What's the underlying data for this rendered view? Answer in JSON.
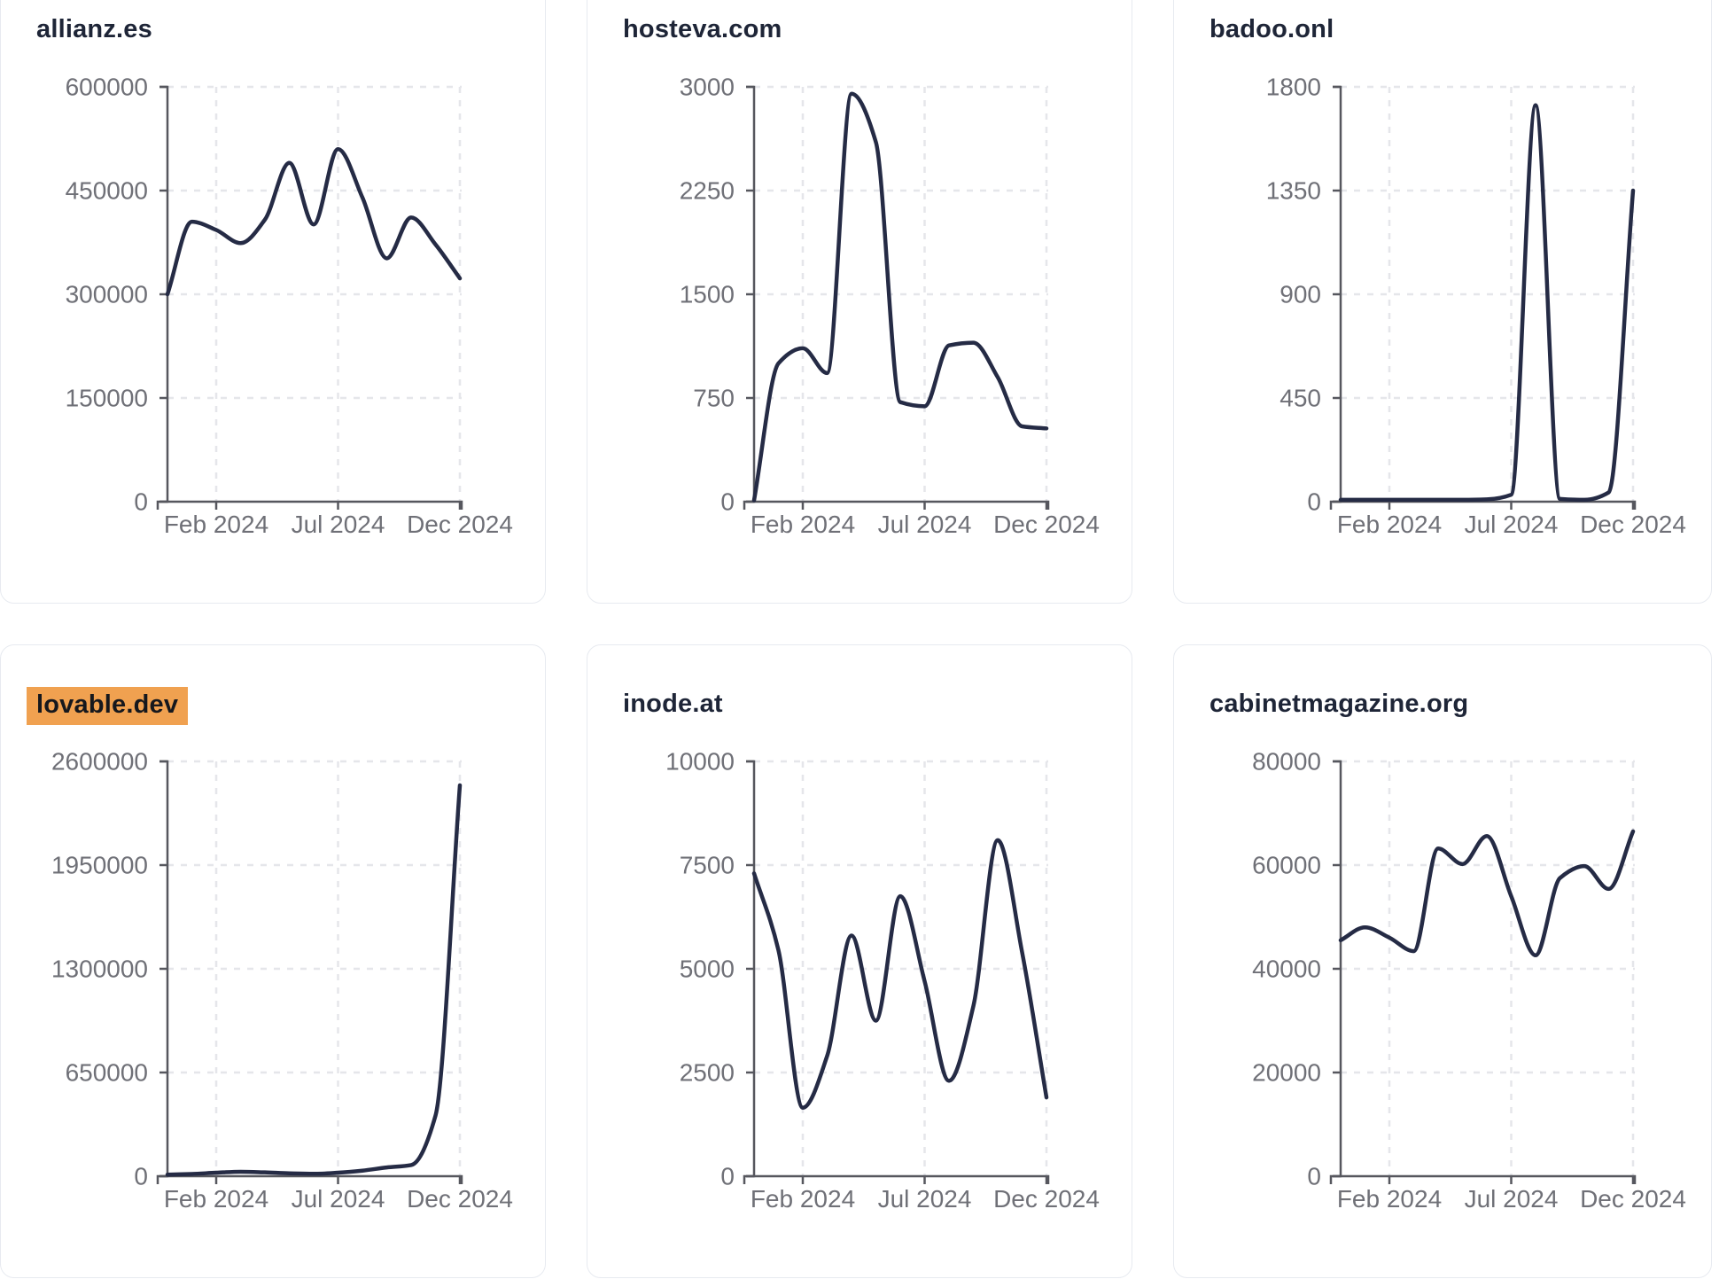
{
  "page": {
    "background": "#ffffff",
    "x_axis_tick_labels": [
      "Feb 2024",
      "Jul 2024",
      "Dec 2024"
    ]
  },
  "style": {
    "card_background": "#ffffff",
    "card_border": "#e7eaf0",
    "title_color": "#1e2537",
    "highlight_color": "#f0a150",
    "highlight_text_color": "#16181d",
    "line_color": "#252b45",
    "axis_color": "#56575e",
    "tick_label_color": "#6f7077",
    "grid_color": "#e5e6ea"
  },
  "chart_data": [
    {
      "type": "line",
      "title": "allianz.es",
      "highlighted": false,
      "x": [
        "2023-12",
        "2024-01",
        "2024-02",
        "2024-03",
        "2024-04",
        "2024-05",
        "2024-06",
        "2024-07",
        "2024-08",
        "2024-09",
        "2024-10",
        "2024-11",
        "2024-12"
      ],
      "x_tick_labels": [
        "Feb 2024",
        "Jul 2024",
        "Dec 2024"
      ],
      "x_tick_month_index": [
        2,
        7,
        12
      ],
      "y_ticks": [
        0,
        150000,
        300000,
        450000,
        600000
      ],
      "ylim": [
        0,
        600000
      ],
      "values": [
        300000,
        405000,
        393000,
        374000,
        408000,
        490000,
        401000,
        510000,
        440000,
        352000,
        411000,
        372000,
        323000
      ]
    },
    {
      "type": "line",
      "title": "hosteva.com",
      "highlighted": false,
      "x": [
        "2023-12",
        "2024-01",
        "2024-02",
        "2024-03",
        "2024-04",
        "2024-05",
        "2024-06",
        "2024-07",
        "2024-08",
        "2024-09",
        "2024-10",
        "2024-11",
        "2024-12"
      ],
      "x_tick_labels": [
        "Feb 2024",
        "Jul 2024",
        "Dec 2024"
      ],
      "x_tick_month_index": [
        2,
        7,
        12
      ],
      "y_ticks": [
        0,
        750,
        1500,
        2250,
        3000
      ],
      "ylim": [
        0,
        3000
      ],
      "values": [
        10,
        1000,
        1110,
        930,
        2950,
        2600,
        720,
        690,
        1130,
        1150,
        900,
        545,
        530
      ]
    },
    {
      "type": "line",
      "title": "badoo.onl",
      "highlighted": false,
      "x": [
        "2023-12",
        "2024-01",
        "2024-02",
        "2024-03",
        "2024-04",
        "2024-05",
        "2024-06",
        "2024-07",
        "2024-08",
        "2024-09",
        "2024-10",
        "2024-11",
        "2024-12"
      ],
      "x_tick_labels": [
        "Feb 2024",
        "Jul 2024",
        "Dec 2024"
      ],
      "x_tick_month_index": [
        2,
        7,
        12
      ],
      "y_ticks": [
        0,
        450,
        900,
        1350,
        1800
      ],
      "ylim": [
        0,
        1800
      ],
      "values": [
        8,
        8,
        8,
        8,
        8,
        8,
        10,
        30,
        1720,
        12,
        8,
        40,
        1350
      ]
    },
    {
      "type": "line",
      "title": "lovable.dev",
      "highlighted": true,
      "x": [
        "2023-12",
        "2024-01",
        "2024-02",
        "2024-03",
        "2024-04",
        "2024-05",
        "2024-06",
        "2024-07",
        "2024-08",
        "2024-09",
        "2024-10",
        "2024-11",
        "2024-12"
      ],
      "x_tick_labels": [
        "Feb 2024",
        "Jul 2024",
        "Dec 2024"
      ],
      "x_tick_month_index": [
        2,
        7,
        12
      ],
      "y_ticks": [
        0,
        650000,
        1300000,
        1950000,
        2600000
      ],
      "ylim": [
        0,
        2600000
      ],
      "values": [
        10000,
        14000,
        22000,
        28000,
        24000,
        18000,
        15000,
        22000,
        35000,
        55000,
        70000,
        380000,
        2450000
      ]
    },
    {
      "type": "line",
      "title": "inode.at",
      "highlighted": false,
      "x": [
        "2023-12",
        "2024-01",
        "2024-02",
        "2024-03",
        "2024-04",
        "2024-05",
        "2024-06",
        "2024-07",
        "2024-08",
        "2024-09",
        "2024-10",
        "2024-11",
        "2024-12"
      ],
      "x_tick_labels": [
        "Feb 2024",
        "Jul 2024",
        "Dec 2024"
      ],
      "x_tick_month_index": [
        2,
        7,
        12
      ],
      "y_ticks": [
        0,
        2500,
        5000,
        7500,
        10000
      ],
      "ylim": [
        0,
        10000
      ],
      "values": [
        7300,
        5450,
        1650,
        2900,
        5800,
        3750,
        6750,
        4700,
        2300,
        4100,
        8100,
        5400,
        1900
      ]
    },
    {
      "type": "line",
      "title": "cabinetmagazine.org",
      "highlighted": false,
      "x": [
        "2023-12",
        "2024-01",
        "2024-02",
        "2024-03",
        "2024-04",
        "2024-05",
        "2024-06",
        "2024-07",
        "2024-08",
        "2024-09",
        "2024-10",
        "2024-11",
        "2024-12"
      ],
      "x_tick_labels": [
        "Feb 2024",
        "Jul 2024",
        "Dec 2024"
      ],
      "x_tick_month_index": [
        2,
        7,
        12
      ],
      "y_ticks": [
        0,
        20000,
        40000,
        60000,
        80000
      ],
      "ylim": [
        0,
        80000
      ],
      "values": [
        45500,
        48000,
        46000,
        43400,
        63200,
        60200,
        65600,
        54000,
        42600,
        57500,
        59800,
        55400,
        66500
      ]
    }
  ]
}
